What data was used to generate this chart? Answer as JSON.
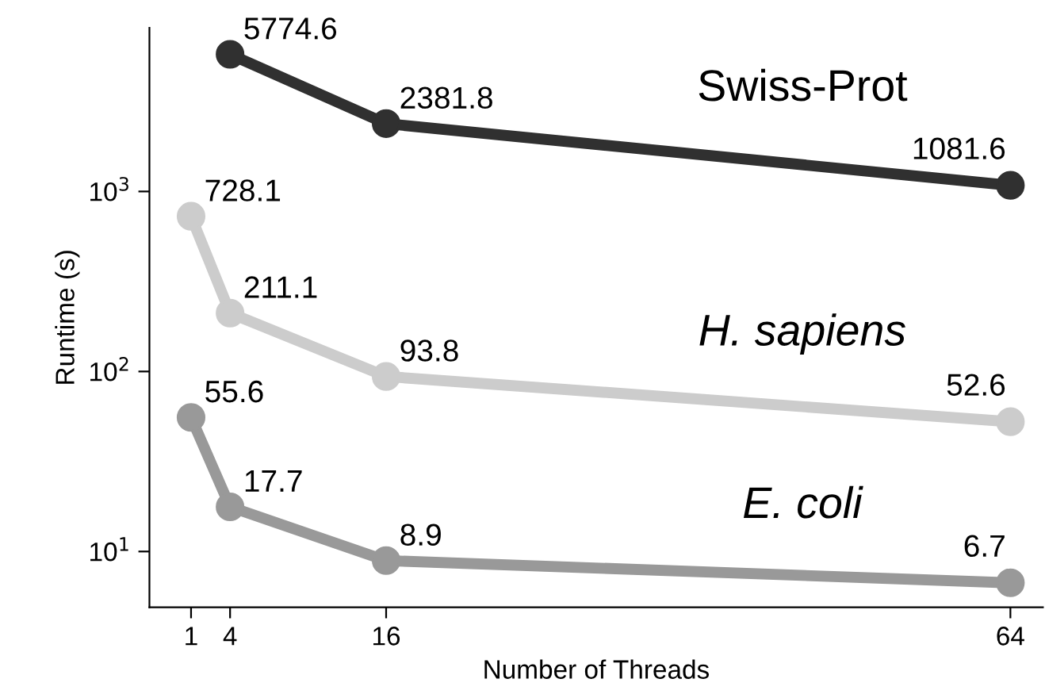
{
  "chart_data": {
    "type": "line",
    "xlabel": "Number of Threads",
    "ylabel": "Runtime (s)",
    "log": "y",
    "xlim": [
      -2.2,
      66.5
    ],
    "ylim": [
      4.9,
      8100
    ],
    "xticks": [
      1,
      4,
      16,
      64
    ],
    "yticks": [
      {
        "value": 10,
        "label": "10$^{1}$"
      },
      {
        "value": 100,
        "label": "10$^{2}$"
      },
      {
        "value": 1000,
        "label": "10$^{3}$"
      }
    ],
    "marker": "circle",
    "line_style": "solid",
    "grid": false,
    "legend": false,
    "data_labels": true,
    "series": [
      {
        "name": "Swiss-Prot",
        "color": "#303030",
        "x": [
          4,
          16,
          64
        ],
        "values": [
          5774.6,
          2381.8,
          1081.6
        ]
      },
      {
        "name": "H. sapiens",
        "color": "#cccccc",
        "x": [
          1,
          4,
          16,
          64
        ],
        "values": [
          728.1,
          211.1,
          93.8,
          52.6
        ]
      },
      {
        "name": "E. coli",
        "color": "#999999",
        "x": [
          1,
          4,
          16,
          64
        ],
        "values": [
          55.6,
          17.7,
          8.9,
          6.7
        ]
      }
    ]
  }
}
